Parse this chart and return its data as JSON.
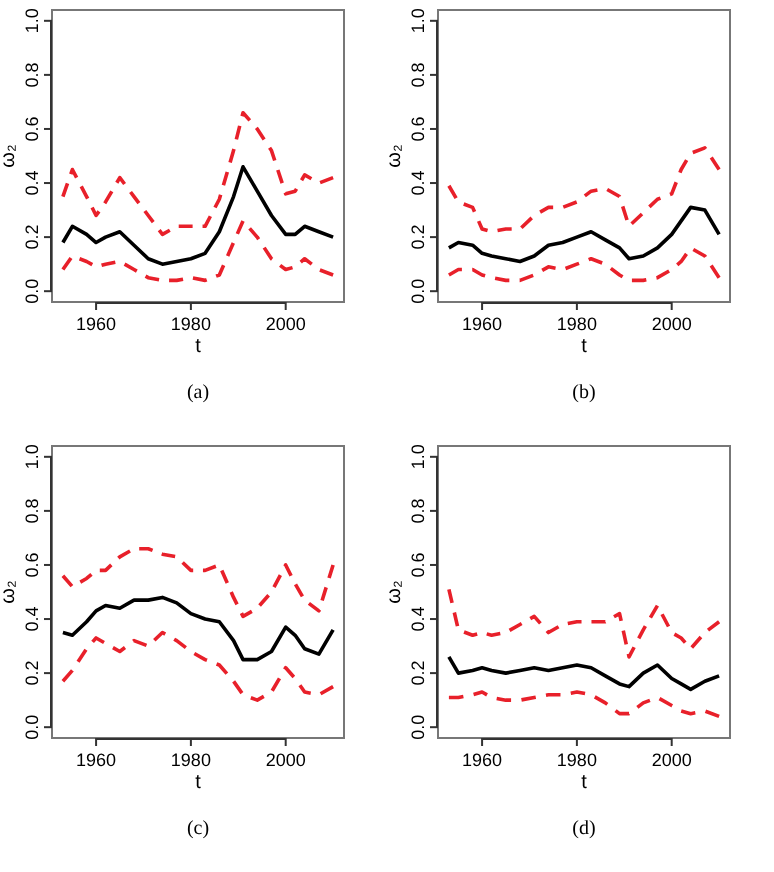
{
  "chart_data": [
    {
      "type": "line",
      "xlabel": "t",
      "ylabel": "ω₂",
      "annotations": [
        "(a)"
      ],
      "xlim": [
        1950.7,
        2012.3
      ],
      "ylim": [
        -0.04,
        1.04
      ],
      "xticks": [
        1960,
        1980,
        2000
      ],
      "yticks": [
        {
          "value": 0,
          "label": "0.0"
        },
        {
          "value": 0.2,
          "label": "0.2"
        },
        {
          "value": 0.4,
          "label": "0.4"
        },
        {
          "value": 0.6,
          "label": "0.6"
        },
        {
          "value": 0.8,
          "label": "0.8"
        },
        {
          "value": 1,
          "label": "1.0"
        }
      ],
      "grid": false,
      "x": [
        1953,
        1955,
        1958,
        1960,
        1962,
        1965,
        1968,
        1971,
        1974,
        1977,
        1980,
        1983,
        1986,
        1989,
        1991,
        1994,
        1997,
        2000,
        2002,
        2004,
        2007,
        2010
      ],
      "series": [
        {
          "color": "#e8202a",
          "line_style": "dashed",
          "values": [
            0.35,
            0.45,
            0.35,
            0.28,
            0.33,
            0.42,
            0.35,
            0.28,
            0.21,
            0.24,
            0.24,
            0.24,
            0.34,
            0.52,
            0.66,
            0.6,
            0.52,
            0.36,
            0.37,
            0.43,
            0.4,
            0.42
          ]
        },
        {
          "color": "#000000",
          "line_style": "solid",
          "values": [
            0.18,
            0.24,
            0.21,
            0.18,
            0.2,
            0.22,
            0.17,
            0.12,
            0.1,
            0.11,
            0.12,
            0.14,
            0.22,
            0.35,
            0.46,
            0.37,
            0.28,
            0.21,
            0.21,
            0.24,
            0.22,
            0.2
          ]
        },
        {
          "color": "#e8202a",
          "line_style": "dashed",
          "values": [
            0.08,
            0.13,
            0.11,
            0.09,
            0.1,
            0.11,
            0.08,
            0.05,
            0.04,
            0.04,
            0.05,
            0.04,
            0.06,
            0.18,
            0.26,
            0.2,
            0.12,
            0.08,
            0.09,
            0.12,
            0.08,
            0.06
          ]
        }
      ]
    },
    {
      "type": "line",
      "xlabel": "t",
      "ylabel": "ω₂",
      "annotations": [
        "(b)"
      ],
      "xlim": [
        1950.7,
        2012.3
      ],
      "ylim": [
        -0.04,
        1.04
      ],
      "xticks": [
        1960,
        1980,
        2000
      ],
      "yticks": [
        {
          "value": 0,
          "label": "0.0"
        },
        {
          "value": 0.2,
          "label": "0.2"
        },
        {
          "value": 0.4,
          "label": "0.4"
        },
        {
          "value": 0.6,
          "label": "0.6"
        },
        {
          "value": 0.8,
          "label": "0.8"
        },
        {
          "value": 1,
          "label": "1.0"
        }
      ],
      "grid": false,
      "x": [
        1953,
        1955,
        1958,
        1960,
        1962,
        1965,
        1968,
        1971,
        1974,
        1977,
        1980,
        1983,
        1986,
        1989,
        1991,
        1994,
        1997,
        2000,
        2002,
        2004,
        2007,
        2010
      ],
      "series": [
        {
          "color": "#e8202a",
          "line_style": "dashed",
          "values": [
            0.39,
            0.33,
            0.31,
            0.23,
            0.22,
            0.23,
            0.23,
            0.28,
            0.31,
            0.31,
            0.33,
            0.37,
            0.38,
            0.35,
            0.24,
            0.29,
            0.34,
            0.36,
            0.45,
            0.51,
            0.53,
            0.45
          ]
        },
        {
          "color": "#000000",
          "line_style": "solid",
          "values": [
            0.16,
            0.18,
            0.17,
            0.14,
            0.13,
            0.12,
            0.11,
            0.13,
            0.17,
            0.18,
            0.2,
            0.22,
            0.19,
            0.16,
            0.12,
            0.13,
            0.16,
            0.21,
            0.26,
            0.31,
            0.3,
            0.21
          ]
        },
        {
          "color": "#e8202a",
          "line_style": "dashed",
          "values": [
            0.06,
            0.08,
            0.08,
            0.06,
            0.05,
            0.04,
            0.04,
            0.06,
            0.09,
            0.08,
            0.1,
            0.12,
            0.1,
            0.06,
            0.04,
            0.04,
            0.05,
            0.08,
            0.11,
            0.16,
            0.13,
            0.05
          ]
        }
      ]
    },
    {
      "type": "line",
      "xlabel": "t",
      "ylabel": "ω₂",
      "annotations": [
        "(c)"
      ],
      "xlim": [
        1950.7,
        2012.3
      ],
      "ylim": [
        -0.04,
        1.04
      ],
      "xticks": [
        1960,
        1980,
        2000
      ],
      "yticks": [
        {
          "value": 0,
          "label": "0.0"
        },
        {
          "value": 0.2,
          "label": "0.2"
        },
        {
          "value": 0.4,
          "label": "0.4"
        },
        {
          "value": 0.6,
          "label": "0.6"
        },
        {
          "value": 0.8,
          "label": "0.8"
        },
        {
          "value": 1,
          "label": "1.0"
        }
      ],
      "grid": false,
      "x": [
        1953,
        1955,
        1958,
        1960,
        1962,
        1965,
        1968,
        1971,
        1974,
        1977,
        1980,
        1983,
        1986,
        1989,
        1991,
        1994,
        1997,
        2000,
        2002,
        2004,
        2007,
        2010
      ],
      "series": [
        {
          "color": "#e8202a",
          "line_style": "dashed",
          "values": [
            0.56,
            0.52,
            0.55,
            0.58,
            0.58,
            0.63,
            0.66,
            0.66,
            0.64,
            0.63,
            0.58,
            0.58,
            0.6,
            0.48,
            0.41,
            0.44,
            0.5,
            0.6,
            0.53,
            0.47,
            0.43,
            0.6
          ]
        },
        {
          "color": "#000000",
          "line_style": "solid",
          "values": [
            0.35,
            0.34,
            0.39,
            0.43,
            0.45,
            0.44,
            0.47,
            0.47,
            0.48,
            0.46,
            0.42,
            0.4,
            0.39,
            0.32,
            0.25,
            0.25,
            0.28,
            0.37,
            0.34,
            0.29,
            0.27,
            0.36
          ]
        },
        {
          "color": "#e8202a",
          "line_style": "dashed",
          "values": [
            0.17,
            0.21,
            0.29,
            0.33,
            0.31,
            0.28,
            0.32,
            0.3,
            0.35,
            0.32,
            0.28,
            0.25,
            0.23,
            0.17,
            0.12,
            0.1,
            0.13,
            0.22,
            0.18,
            0.13,
            0.12,
            0.15
          ]
        }
      ]
    },
    {
      "type": "line",
      "xlabel": "t",
      "ylabel": "ω₂",
      "annotations": [
        "(d)"
      ],
      "xlim": [
        1950.7,
        2012.3
      ],
      "ylim": [
        -0.04,
        1.04
      ],
      "xticks": [
        1960,
        1980,
        2000
      ],
      "yticks": [
        {
          "value": 0,
          "label": "0.0"
        },
        {
          "value": 0.2,
          "label": "0.2"
        },
        {
          "value": 0.4,
          "label": "0.4"
        },
        {
          "value": 0.6,
          "label": "0.6"
        },
        {
          "value": 0.8,
          "label": "0.8"
        },
        {
          "value": 1,
          "label": "1.0"
        }
      ],
      "grid": false,
      "x": [
        1953,
        1955,
        1958,
        1960,
        1962,
        1965,
        1968,
        1971,
        1974,
        1977,
        1980,
        1983,
        1986,
        1989,
        1991,
        1994,
        1997,
        2000,
        2002,
        2004,
        2007,
        2010
      ],
      "series": [
        {
          "color": "#e8202a",
          "line_style": "dashed",
          "values": [
            0.51,
            0.36,
            0.34,
            0.35,
            0.34,
            0.35,
            0.38,
            0.41,
            0.35,
            0.38,
            0.39,
            0.39,
            0.39,
            0.42,
            0.26,
            0.36,
            0.45,
            0.35,
            0.33,
            0.29,
            0.35,
            0.39
          ]
        },
        {
          "color": "#000000",
          "line_style": "solid",
          "values": [
            0.26,
            0.2,
            0.21,
            0.22,
            0.21,
            0.2,
            0.21,
            0.22,
            0.21,
            0.22,
            0.23,
            0.22,
            0.19,
            0.16,
            0.15,
            0.2,
            0.23,
            0.18,
            0.16,
            0.14,
            0.17,
            0.19
          ]
        },
        {
          "color": "#e8202a",
          "line_style": "dashed",
          "values": [
            0.11,
            0.11,
            0.12,
            0.13,
            0.11,
            0.1,
            0.1,
            0.11,
            0.12,
            0.12,
            0.13,
            0.12,
            0.09,
            0.05,
            0.05,
            0.09,
            0.11,
            0.08,
            0.06,
            0.05,
            0.06,
            0.04
          ]
        }
      ]
    }
  ]
}
